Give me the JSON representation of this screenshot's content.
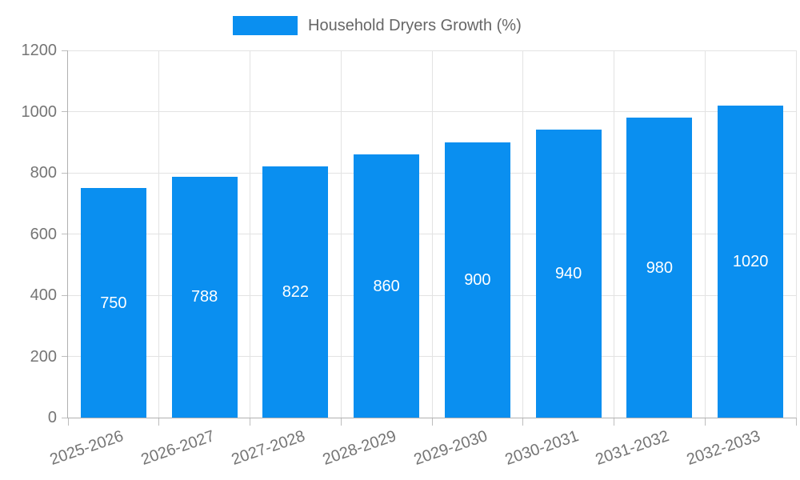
{
  "colors": {
    "bar": "#0A8FF0",
    "grid": "#e3e3e3",
    "axis": "#b0b0b0",
    "tick": "#bdbdbd",
    "tick_text": "#757575",
    "legend_text": "#666666",
    "value_text": "#ffffff",
    "background": "#ffffff"
  },
  "chart_data": {
    "type": "bar",
    "title": "Household Dryers Growth (%)",
    "legend": [
      "Household Dryers Growth (%)"
    ],
    "legend_position": "top-center",
    "categories": [
      "2025-2026",
      "2026-2027",
      "2027-2028",
      "2028-2029",
      "2029-2030",
      "2030-2031",
      "2031-2032",
      "2032-2033"
    ],
    "values": [
      750,
      788,
      822,
      860,
      900,
      940,
      980,
      1020
    ],
    "value_labels_shown": true,
    "value_label_position": "inside-middle",
    "xlabel": "",
    "ylabel": "",
    "ylim": [
      0,
      1200
    ],
    "yticks": [
      0,
      200,
      400,
      600,
      800,
      1000,
      1200
    ],
    "grid": true,
    "x_label_rotation_deg": -19
  }
}
